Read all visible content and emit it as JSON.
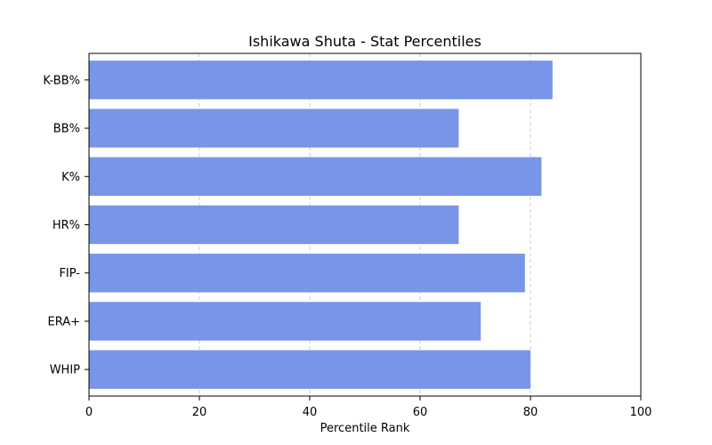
{
  "chart_data": {
    "type": "bar",
    "orientation": "horizontal",
    "title": "Ishikawa Shuta - Stat Percentiles",
    "xlabel": "Percentile Rank",
    "ylabel": "",
    "xlim": [
      0,
      100
    ],
    "x_ticks": [
      0,
      20,
      40,
      60,
      80,
      100
    ],
    "grid": {
      "x": true,
      "y": false,
      "style": "dashed"
    },
    "categories": [
      "K-BB%",
      "BB%",
      "K%",
      "HR%",
      "FIP-",
      "ERA+",
      "WHIP"
    ],
    "values": [
      84,
      67,
      82,
      67,
      79,
      71,
      80
    ],
    "colors": {
      "bar": "#7895e9",
      "grid": "#cccccc",
      "axis": "#000000"
    }
  }
}
